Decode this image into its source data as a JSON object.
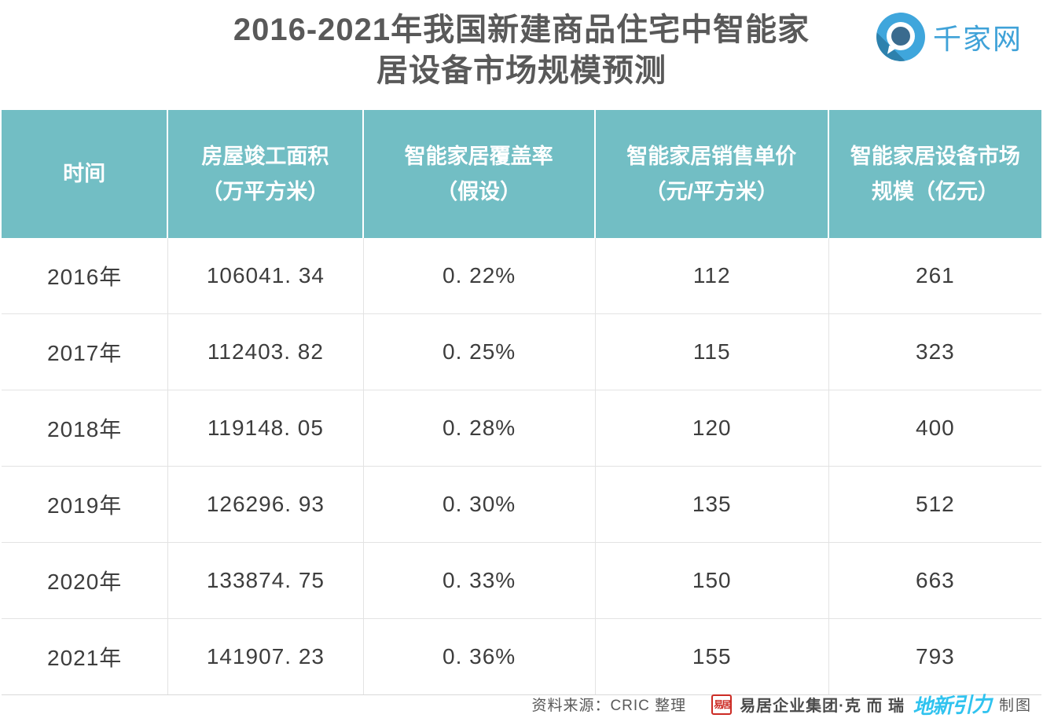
{
  "header": {
    "title_line1": "2016-2021年我国新建商品住宅中智能家",
    "title_line2": "居设备市场规模预测",
    "logo_text": "千家网"
  },
  "colors": {
    "table_header_bg": "#72bec4",
    "title_text": "#595959",
    "logo_blue": "#3fa2d8",
    "seal_red": "#cc2b24",
    "dxyl_cyan": "#30c3ef"
  },
  "table": {
    "columns": [
      {
        "line1": "时间",
        "line2": ""
      },
      {
        "line1": "房屋竣工面积",
        "line2": "（万平方米）"
      },
      {
        "line1": "智能家居覆盖率",
        "line2": "（假设）"
      },
      {
        "line1": "智能家居销售单价",
        "line2": "（元/平方米）"
      },
      {
        "line1": "智能家居设备市场",
        "line2": "规模（亿元）"
      }
    ],
    "rows": [
      {
        "cells": [
          "2016年",
          "106041. 34",
          "0. 22%",
          "112",
          "261"
        ]
      },
      {
        "cells": [
          "2017年",
          "112403. 82",
          "0. 25%",
          "115",
          "323"
        ]
      },
      {
        "cells": [
          "2018年",
          "119148. 05",
          "0. 28%",
          "120",
          "400"
        ]
      },
      {
        "cells": [
          "2019年",
          "126296. 93",
          "0. 30%",
          "135",
          "512"
        ]
      },
      {
        "cells": [
          "2020年",
          "133874. 75",
          "0. 33%",
          "150",
          "663"
        ]
      },
      {
        "cells": [
          "2021年",
          "141907. 23",
          "0. 36%",
          "155",
          "793"
        ]
      }
    ]
  },
  "footer": {
    "source": "资料来源：CRIC 整理",
    "seal_text": "易居",
    "company": "易居企业集团·克 而 瑞",
    "dxyl_logo": "地新引力",
    "maker": "制图"
  },
  "chart_data": {
    "type": "table",
    "title": "2016-2021年我国新建商品住宅中智能家居设备市场规模预测",
    "columns": [
      "时间",
      "房屋竣工面积（万平方米）",
      "智能家居覆盖率（假设）",
      "智能家居销售单价（元/平方米）",
      "智能家居设备市场规模（亿元）"
    ],
    "rows": [
      [
        "2016年",
        106041.34,
        "0.22%",
        112,
        261
      ],
      [
        "2017年",
        112403.82,
        "0.25%",
        115,
        323
      ],
      [
        "2018年",
        119148.05,
        "0.28%",
        120,
        400
      ],
      [
        "2019年",
        126296.93,
        "0.30%",
        135,
        512
      ],
      [
        "2020年",
        133874.75,
        "0.33%",
        150,
        663
      ],
      [
        "2021年",
        141907.23,
        "0.36%",
        155,
        793
      ]
    ],
    "source": "资料来源：CRIC 整理",
    "legend_position": "none",
    "grid": true
  }
}
